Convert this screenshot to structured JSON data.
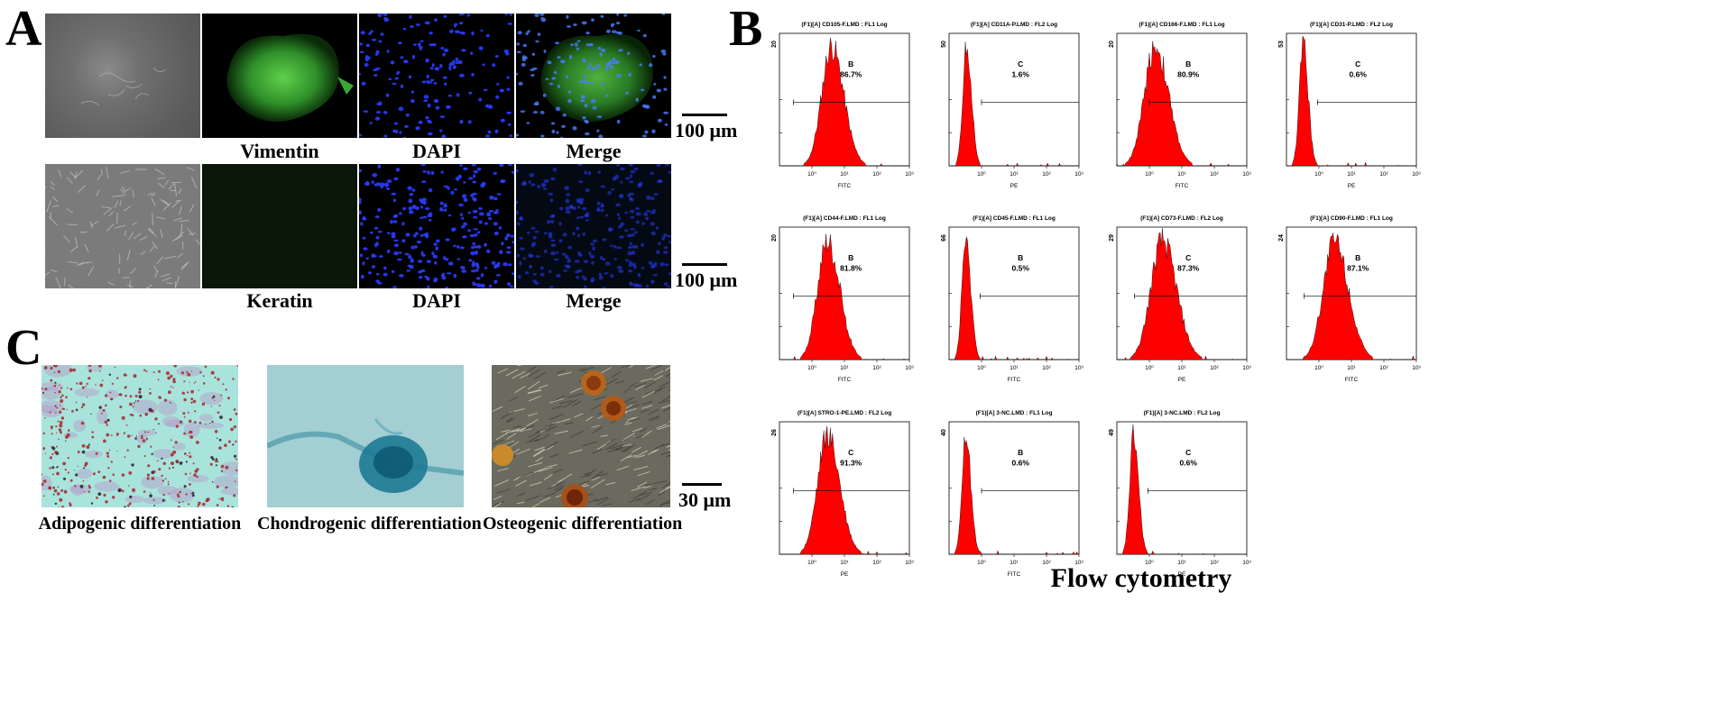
{
  "panel_labels": {
    "a": "A",
    "b": "B",
    "c": "C"
  },
  "panel_a": {
    "row1_captions": [
      "Vimentin",
      "DAPI",
      "Merge"
    ],
    "row2_captions": [
      "Keratin",
      "DAPI",
      "Merge"
    ],
    "scale_bar_1": "100 μm",
    "scale_bar_2": "100 μm"
  },
  "panel_c": {
    "captions": [
      "Adipogenic differentiation",
      "Chondrogenic differentiation",
      "Osteogenic differentiation"
    ],
    "scale_bar": "30 μm"
  },
  "panel_b": {
    "title": "Flow cytometry",
    "tick_labels": [
      "10⁰",
      "10¹",
      "10²",
      "10³"
    ]
  },
  "colors": {
    "histogram_fill": "#ff0000",
    "gfp": "#2ecc40",
    "dapi": "#1a2bff"
  },
  "chart_data": [
    {
      "type": "histogram",
      "title": "(F1)[A] CD105-F.LMD : FL1 Log",
      "xlabel": "FITC",
      "ymax_label": "20",
      "gate": "B",
      "percent": "86.7%",
      "xscale": "log",
      "xlim": [
        0.1,
        1000
      ],
      "peak": 4.0,
      "spread": 0.3,
      "gate_start": 0.27
    },
    {
      "type": "histogram",
      "title": "(F1)[A] CD11A-P.LMD : FL2 Log",
      "xlabel": "PE",
      "ymax_label": "50",
      "gate": "C",
      "percent": "1.6%",
      "xscale": "log",
      "xlim": [
        0.1,
        1000
      ],
      "peak": 0.35,
      "spread": 0.12,
      "gate_start": 1.0
    },
    {
      "type": "histogram",
      "title": "(F1)[A] CD166-F.LMD : FL1 Log",
      "xlabel": "FITC",
      "ymax_label": "20",
      "gate": "B",
      "percent": "80.9%",
      "xscale": "log",
      "xlim": [
        0.1,
        1000
      ],
      "peak": 1.5,
      "spread": 0.33,
      "gate_start": 1.0
    },
    {
      "type": "histogram",
      "title": "(F1)[A] CD31-P.LMD : FL2 Log",
      "xlabel": "PE",
      "ymax_label": "53",
      "gate": "C",
      "percent": "0.6%",
      "xscale": "log",
      "xlim": [
        0.1,
        1000
      ],
      "peak": 0.33,
      "spread": 0.12,
      "gate_start": 0.9
    },
    {
      "type": "histogram",
      "title": "(F1)[A] CD44-F.LMD : FL1 Log",
      "xlabel": "FITC",
      "ymax_label": "20",
      "gate": "B",
      "percent": "81.8%",
      "xscale": "log",
      "xlim": [
        0.1,
        1000
      ],
      "peak": 3.0,
      "spread": 0.3,
      "gate_start": 0.27
    },
    {
      "type": "histogram",
      "title": "(F1)[A] CD45-F.LMD : FL1 Log",
      "xlabel": "FITC",
      "ymax_label": "66",
      "gate": "B",
      "percent": "0.5%",
      "xscale": "log",
      "xlim": [
        0.1,
        1000
      ],
      "peak": 0.33,
      "spread": 0.12,
      "gate_start": 0.9
    },
    {
      "type": "histogram",
      "title": "(F1)[A] CD73-F.LMD : FL2 Log",
      "xlabel": "PE",
      "ymax_label": "29",
      "gate": "C",
      "percent": "87.3%",
      "xscale": "log",
      "xlim": [
        0.1,
        1000
      ],
      "peak": 2.5,
      "spread": 0.35,
      "gate_start": 0.35
    },
    {
      "type": "histogram",
      "title": "(F1)[A] CD90-F.LMD : FL1 Log",
      "xlabel": "FITC",
      "ymax_label": "24",
      "gate": "B",
      "percent": "87.1%",
      "xscale": "log",
      "xlim": [
        0.1,
        1000
      ],
      "peak": 3.0,
      "spread": 0.34,
      "gate_start": 0.35
    },
    {
      "type": "histogram",
      "title": "(F1)[A] STRO-1-PE.LMD : FL2 Log",
      "xlabel": "PE",
      "ymax_label": "26",
      "gate": "C",
      "percent": "91.3%",
      "xscale": "log",
      "xlim": [
        0.1,
        1000
      ],
      "peak": 3.0,
      "spread": 0.3,
      "gate_start": 0.27
    },
    {
      "type": "histogram",
      "title": "(F1)[A] 3-NC.LMD : FL1 Log",
      "xlabel": "FITC",
      "ymax_label": "40",
      "gate": "B",
      "percent": "0.6%",
      "xscale": "log",
      "xlim": [
        0.1,
        1000
      ],
      "peak": 0.33,
      "spread": 0.12,
      "gate_start": 1.0
    },
    {
      "type": "histogram",
      "title": "(F1)[A] 3-NC.LMD : FL2 Log",
      "xlabel": "PE",
      "ymax_label": "49",
      "gate": "C",
      "percent": "0.6%",
      "xscale": "log",
      "xlim": [
        0.1,
        1000
      ],
      "peak": 0.33,
      "spread": 0.12,
      "gate_start": 0.9
    }
  ]
}
